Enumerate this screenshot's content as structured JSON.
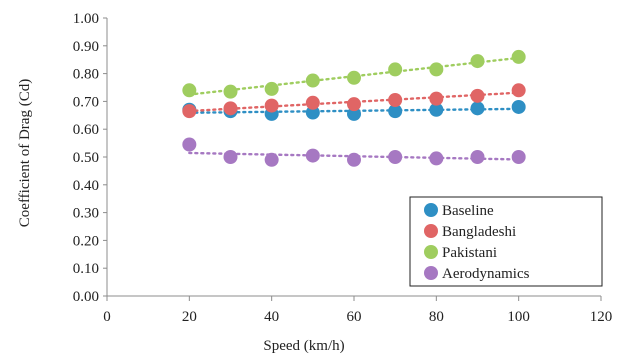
{
  "chart_data": {
    "type": "scatter",
    "xlabel": "Speed (km/h)",
    "ylabel": "Coefficient of Drag (Cd)",
    "xlim": [
      0,
      120
    ],
    "ylim": [
      0.0,
      1.0
    ],
    "x_ticks": [
      "0",
      "20",
      "40",
      "60",
      "80",
      "100",
      "120"
    ],
    "y_ticks": [
      "0.00",
      "0.10",
      "0.20",
      "0.30",
      "0.40",
      "0.50",
      "0.60",
      "0.70",
      "0.80",
      "0.90",
      "1.00"
    ],
    "grid": false,
    "trendlines": true,
    "legend_position": "bottom-right",
    "x": [
      20,
      30,
      40,
      50,
      60,
      70,
      80,
      90,
      100
    ],
    "series": [
      {
        "name": "Baseline",
        "color": "#2e8fc4",
        "values": [
          0.67,
          0.665,
          0.655,
          0.66,
          0.655,
          0.665,
          0.67,
          0.675,
          0.68
        ]
      },
      {
        "name": "Bangladeshi",
        "color": "#e06565",
        "values": [
          0.665,
          0.675,
          0.685,
          0.695,
          0.69,
          0.705,
          0.71,
          0.72,
          0.74
        ]
      },
      {
        "name": "Pakistani",
        "color": "#9fcd5f",
        "values": [
          0.74,
          0.735,
          0.745,
          0.775,
          0.785,
          0.815,
          0.815,
          0.845,
          0.86
        ]
      },
      {
        "name": "Aerodynamics",
        "color": "#a678c2",
        "values": [
          0.545,
          0.5,
          0.49,
          0.505,
          0.49,
          0.5,
          0.495,
          0.5,
          0.5
        ]
      }
    ]
  }
}
